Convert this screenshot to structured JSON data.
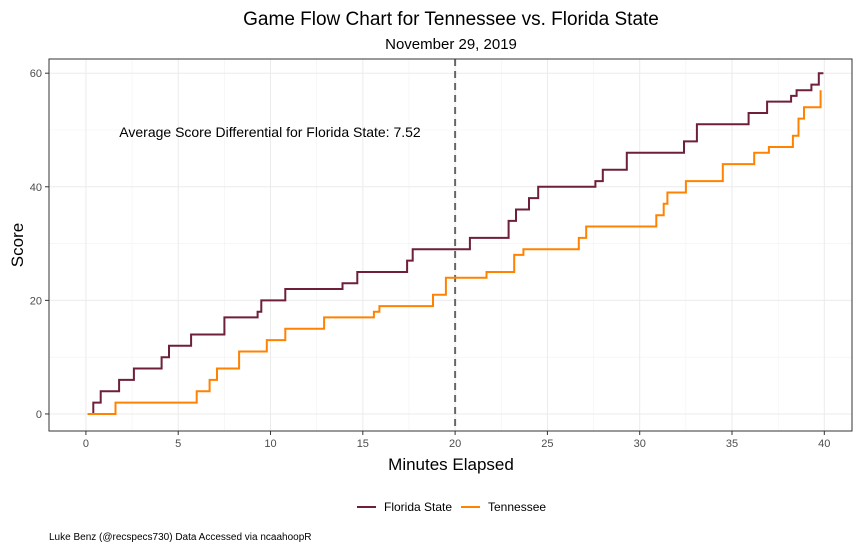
{
  "chart_data": {
    "type": "line",
    "step": true,
    "title": "Game Flow Chart for Tennessee vs. Florida State",
    "subtitle": "November 29, 2019",
    "xlabel": "Minutes Elapsed",
    "ylabel": "Score",
    "xlim": [
      -2,
      41.5
    ],
    "ylim": [
      -3,
      62.5
    ],
    "xticks": [
      0,
      5,
      10,
      15,
      20,
      25,
      30,
      35,
      40
    ],
    "yticks": [
      0,
      20,
      40,
      60
    ],
    "grid": true,
    "halftime_line_x": 20,
    "annotation": "Average Score Differential for Florida State: 7.52",
    "legend_position": "bottom",
    "caption": "Luke Benz (@recspecs730) Data Accessed via ncaahoopR",
    "series": [
      {
        "name": "Florida State",
        "color": "#6e1f3b",
        "points": [
          [
            0.1,
            0
          ],
          [
            0.4,
            0
          ],
          [
            0.4,
            2
          ],
          [
            0.8,
            2
          ],
          [
            0.8,
            4
          ],
          [
            1.8,
            4
          ],
          [
            1.8,
            6
          ],
          [
            2.6,
            6
          ],
          [
            2.6,
            8
          ],
          [
            4.1,
            8
          ],
          [
            4.1,
            10
          ],
          [
            4.5,
            10
          ],
          [
            4.5,
            12
          ],
          [
            5.7,
            12
          ],
          [
            5.7,
            14
          ],
          [
            7.5,
            14
          ],
          [
            7.5,
            17
          ],
          [
            9.3,
            17
          ],
          [
            9.3,
            18
          ],
          [
            9.5,
            18
          ],
          [
            9.5,
            20
          ],
          [
            10.8,
            20
          ],
          [
            10.8,
            22
          ],
          [
            13.9,
            22
          ],
          [
            13.9,
            23
          ],
          [
            14.7,
            23
          ],
          [
            14.7,
            25
          ],
          [
            17.4,
            25
          ],
          [
            17.4,
            27
          ],
          [
            17.7,
            27
          ],
          [
            17.7,
            29
          ],
          [
            20.8,
            29
          ],
          [
            20.8,
            31
          ],
          [
            22.9,
            31
          ],
          [
            22.9,
            34
          ],
          [
            23.3,
            34
          ],
          [
            23.3,
            36
          ],
          [
            24.0,
            36
          ],
          [
            24.0,
            38
          ],
          [
            24.5,
            38
          ],
          [
            24.5,
            40
          ],
          [
            27.6,
            40
          ],
          [
            27.6,
            41
          ],
          [
            28.0,
            41
          ],
          [
            28.0,
            43
          ],
          [
            29.3,
            43
          ],
          [
            29.3,
            46
          ],
          [
            32.4,
            46
          ],
          [
            32.4,
            48
          ],
          [
            33.1,
            48
          ],
          [
            33.1,
            51
          ],
          [
            35.9,
            51
          ],
          [
            35.9,
            53
          ],
          [
            36.9,
            53
          ],
          [
            36.9,
            55
          ],
          [
            38.2,
            55
          ],
          [
            38.2,
            56
          ],
          [
            38.5,
            56
          ],
          [
            38.5,
            57
          ],
          [
            39.3,
            57
          ],
          [
            39.3,
            58
          ],
          [
            39.7,
            58
          ],
          [
            39.7,
            60
          ],
          [
            39.95,
            60
          ]
        ]
      },
      {
        "name": "Tennessee",
        "color": "#ff8200",
        "points": [
          [
            0.1,
            0
          ],
          [
            1.6,
            0
          ],
          [
            1.6,
            2
          ],
          [
            6.0,
            2
          ],
          [
            6.0,
            4
          ],
          [
            6.7,
            4
          ],
          [
            6.7,
            6
          ],
          [
            7.1,
            6
          ],
          [
            7.1,
            8
          ],
          [
            8.3,
            8
          ],
          [
            8.3,
            11
          ],
          [
            9.8,
            11
          ],
          [
            9.8,
            13
          ],
          [
            10.8,
            13
          ],
          [
            10.8,
            15
          ],
          [
            12.9,
            15
          ],
          [
            12.9,
            17
          ],
          [
            15.6,
            17
          ],
          [
            15.6,
            18
          ],
          [
            15.9,
            18
          ],
          [
            15.9,
            19
          ],
          [
            18.8,
            19
          ],
          [
            18.8,
            21
          ],
          [
            19.5,
            21
          ],
          [
            19.5,
            24
          ],
          [
            21.7,
            24
          ],
          [
            21.7,
            25
          ],
          [
            23.2,
            25
          ],
          [
            23.2,
            28
          ],
          [
            23.7,
            28
          ],
          [
            23.7,
            29
          ],
          [
            26.7,
            29
          ],
          [
            26.7,
            31
          ],
          [
            27.1,
            31
          ],
          [
            27.1,
            33
          ],
          [
            30.9,
            33
          ],
          [
            30.9,
            35
          ],
          [
            31.3,
            35
          ],
          [
            31.3,
            37
          ],
          [
            31.5,
            37
          ],
          [
            31.5,
            39
          ],
          [
            32.5,
            39
          ],
          [
            32.5,
            41
          ],
          [
            34.5,
            41
          ],
          [
            34.5,
            44
          ],
          [
            36.2,
            44
          ],
          [
            36.2,
            46
          ],
          [
            37.0,
            46
          ],
          [
            37.0,
            47
          ],
          [
            38.3,
            47
          ],
          [
            38.3,
            49
          ],
          [
            38.6,
            49
          ],
          [
            38.6,
            52
          ],
          [
            38.9,
            52
          ],
          [
            38.9,
            54
          ],
          [
            39.8,
            54
          ],
          [
            39.8,
            57
          ]
        ]
      }
    ]
  }
}
